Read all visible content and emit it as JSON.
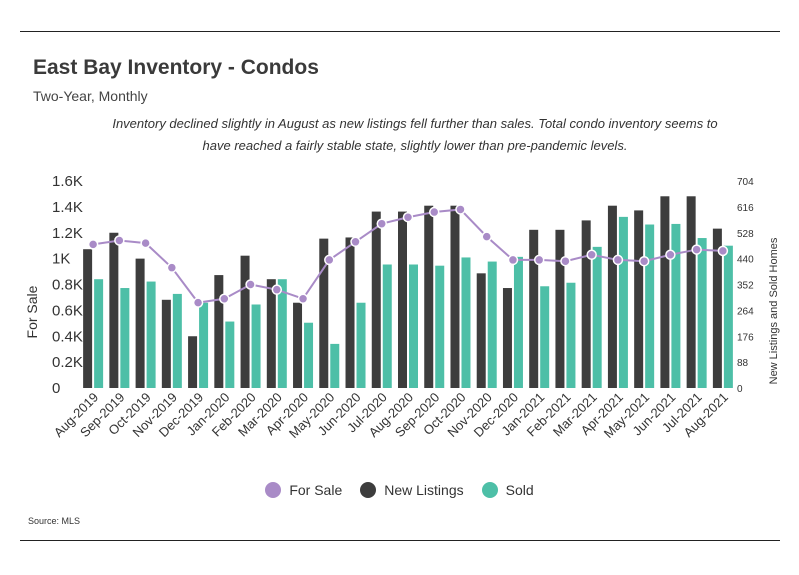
{
  "header": {
    "title": "East Bay Inventory - Condos",
    "subtitle": "Two-Year, Monthly",
    "note": "Inventory declined slightly in August as new listings fell further than sales. Total condo inventory seems to have reached a fairly stable state, slightly lower than pre-pandemic levels."
  },
  "footer": {
    "source": "Source:  MLS"
  },
  "colors": {
    "for_sale": "#a98bc7",
    "new_listings": "#3d3d3d",
    "sold": "#4dbfa7"
  },
  "chart_data": {
    "type": "bar+line",
    "categories": [
      "Aug-2019",
      "Sep-2019",
      "Oct-2019",
      "Nov-2019",
      "Dec-2019",
      "Jan-2020",
      "Feb-2020",
      "Mar-2020",
      "Apr-2020",
      "May-2020",
      "Jun-2020",
      "Jul-2020",
      "Aug-2020",
      "Sep-2020",
      "Oct-2020",
      "Nov-2020",
      "Dec-2020",
      "Jan-2021",
      "Feb-2021",
      "Mar-2021",
      "Apr-2021",
      "May-2021",
      "Jun-2021",
      "Jul-2021",
      "Aug-2021"
    ],
    "left_axis": {
      "label": "For Sale",
      "ylim": [
        0,
        1600
      ],
      "ticks": [
        0,
        200,
        400,
        600,
        800,
        1000,
        1200,
        1400,
        1600
      ],
      "tick_labels": [
        "0",
        "0.2K",
        "0.4K",
        "0.6K",
        "0.8K",
        "1K",
        "1.2K",
        "1.4K",
        "1.6K"
      ]
    },
    "right_axis": {
      "label": "New Listings and Sold Homes",
      "ylim": [
        0,
        704
      ],
      "ticks": [
        0,
        88,
        176,
        264,
        352,
        440,
        528,
        616,
        704
      ],
      "tick_labels": [
        "0",
        "88",
        "176",
        "264",
        "352",
        "440",
        "528",
        "616",
        "704"
      ]
    },
    "series": [
      {
        "name": "For Sale",
        "axis": "left",
        "kind": "line",
        "values": [
          1110,
          1140,
          1120,
          930,
          660,
          690,
          800,
          760,
          690,
          990,
          1130,
          1270,
          1320,
          1360,
          1380,
          1170,
          990,
          990,
          980,
          1030,
          990,
          980,
          1030,
          1070,
          1060
        ]
      },
      {
        "name": "New Listings",
        "axis": "right",
        "kind": "bar",
        "values": [
          472,
          528,
          440,
          300,
          176,
          384,
          450,
          370,
          290,
          508,
          512,
          600,
          600,
          620,
          620,
          390,
          340,
          538,
          538,
          570,
          620,
          604,
          652,
          652,
          542
        ]
      },
      {
        "name": "Sold",
        "axis": "right",
        "kind": "bar",
        "values": [
          370,
          340,
          362,
          320,
          290,
          226,
          284,
          370,
          222,
          150,
          290,
          420,
          420,
          416,
          444,
          430,
          446,
          346,
          358,
          480,
          582,
          556,
          558,
          510,
          484
        ]
      }
    ],
    "grid": false,
    "legend": "bottom-center"
  }
}
